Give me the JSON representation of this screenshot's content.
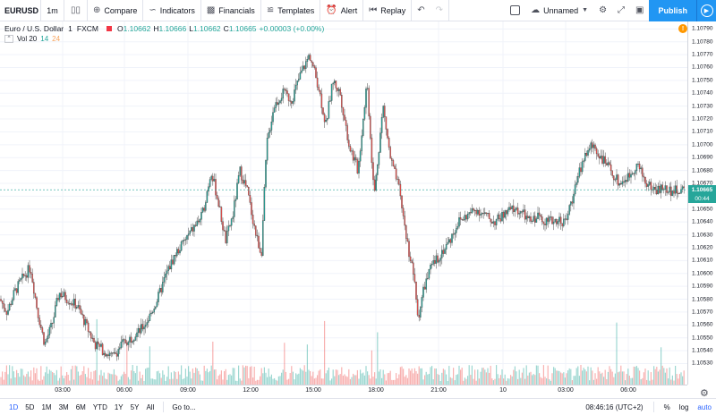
{
  "toolbar": {
    "symbol": "EURUSD",
    "interval": "1m",
    "compare": "Compare",
    "indicators": "Indicators",
    "financials": "Financials",
    "templates": "Templates",
    "alert": "Alert",
    "replay": "Replay",
    "layout_name": "Unnamed",
    "publish": "Publish"
  },
  "legend": {
    "title": "Euro / U.S. Dollar",
    "interval": "1",
    "exchange": "FXCM",
    "o_label": "O",
    "o_value": "1.10662",
    "h_label": "H",
    "h_value": "1.10666",
    "l_label": "L",
    "l_value": "1.10662",
    "c_label": "C",
    "c_value": "1.10665",
    "change": "+0.00003 (+0.00%)",
    "vol_label": "Vol 20",
    "vol_a": "14",
    "vol_b": "24"
  },
  "alert_badge": "!",
  "price_badge": "1.10665",
  "time_badge": "00:44",
  "colors": {
    "up": "#26a69a",
    "down": "#ef5350",
    "accent": "#2196f3",
    "grid": "#f0f3fa"
  },
  "chart_data": {
    "type": "candlestick",
    "y_ticks": [
      "1.10790",
      "1.10780",
      "1.10770",
      "1.10760",
      "1.10750",
      "1.10740",
      "1.10730",
      "1.10720",
      "1.10710",
      "1.10700",
      "1.10690",
      "1.10680",
      "1.10670",
      "1.10660",
      "1.10650",
      "1.10640",
      "1.10630",
      "1.10620",
      "1.10610",
      "1.10600",
      "1.10590",
      "1.10580",
      "1.10570",
      "1.10560",
      "1.10550",
      "1.10540",
      "1.10530"
    ],
    "x_ticks": [
      "03:00",
      "06:00",
      "09:00",
      "12:00",
      "15:00",
      "18:00",
      "21:00",
      "10",
      "03:00",
      "06:00"
    ],
    "ylim": [
      1.10522,
      1.10793
    ],
    "last_price": 1.10665,
    "price_path": [
      [
        0,
        1.1058
      ],
      [
        8,
        1.1057
      ],
      [
        16,
        1.10585
      ],
      [
        24,
        1.10595
      ],
      [
        34,
        1.10605
      ],
      [
        42,
        1.1057
      ],
      [
        50,
        1.10545
      ],
      [
        58,
        1.1056
      ],
      [
        66,
        1.10585
      ],
      [
        76,
        1.1058
      ],
      [
        86,
        1.10575
      ],
      [
        96,
        1.1056
      ],
      [
        106,
        1.10545
      ],
      [
        116,
        1.1054
      ],
      [
        126,
        1.10535
      ],
      [
        136,
        1.10545
      ],
      [
        146,
        1.1055
      ],
      [
        156,
        1.10555
      ],
      [
        166,
        1.10565
      ],
      [
        176,
        1.1058
      ],
      [
        186,
        1.106
      ],
      [
        196,
        1.10615
      ],
      [
        206,
        1.10625
      ],
      [
        216,
        1.10635
      ],
      [
        226,
        1.10645
      ],
      [
        236,
        1.1068
      ],
      [
        244,
        1.10655
      ],
      [
        252,
        1.10625
      ],
      [
        260,
        1.10645
      ],
      [
        268,
        1.1068
      ],
      [
        276,
        1.10665
      ],
      [
        286,
        1.1063
      ],
      [
        292,
        1.10615
      ],
      [
        298,
        1.107
      ],
      [
        306,
        1.1073
      ],
      [
        316,
        1.1074
      ],
      [
        326,
        1.10735
      ],
      [
        336,
        1.10755
      ],
      [
        346,
        1.1077
      ],
      [
        356,
        1.10745
      ],
      [
        364,
        1.10715
      ],
      [
        372,
        1.1075
      ],
      [
        380,
        1.1074
      ],
      [
        390,
        1.107
      ],
      [
        400,
        1.1068
      ],
      [
        410,
        1.1075
      ],
      [
        418,
        1.1066
      ],
      [
        428,
        1.1073
      ],
      [
        436,
        1.1069
      ],
      [
        446,
        1.10665
      ],
      [
        456,
        1.1062
      ],
      [
        462,
        1.106
      ],
      [
        467,
        1.10565
      ],
      [
        474,
        1.1059
      ],
      [
        482,
        1.10605
      ],
      [
        492,
        1.10615
      ],
      [
        502,
        1.10625
      ],
      [
        512,
        1.1064
      ],
      [
        522,
        1.10645
      ],
      [
        532,
        1.1065
      ],
      [
        542,
        1.10645
      ],
      [
        552,
        1.1064
      ],
      [
        562,
        1.10645
      ],
      [
        572,
        1.1065
      ],
      [
        582,
        1.10648
      ],
      [
        592,
        1.1064
      ],
      [
        602,
        1.10645
      ],
      [
        612,
        1.1064
      ],
      [
        622,
        1.10642
      ],
      [
        632,
        1.1064
      ],
      [
        642,
        1.10665
      ],
      [
        652,
        1.1069
      ],
      [
        662,
        1.107
      ],
      [
        672,
        1.1069
      ],
      [
        682,
        1.1068
      ],
      [
        692,
        1.1067
      ],
      [
        702,
        1.10675
      ],
      [
        712,
        1.10685
      ],
      [
        722,
        1.1067
      ],
      [
        732,
        1.10665
      ],
      [
        742,
        1.10666
      ],
      [
        752,
        1.10664
      ],
      [
        764,
        1.10665
      ]
    ]
  },
  "bottom_bar": {
    "ranges": [
      "1D",
      "5D",
      "1M",
      "3M",
      "6M",
      "YTD",
      "1Y",
      "5Y",
      "All"
    ],
    "active": "1D",
    "goto": "Go to...",
    "clock": "08:46:16 (UTC+2)",
    "percent": "%",
    "log": "log",
    "auto": "auto"
  }
}
